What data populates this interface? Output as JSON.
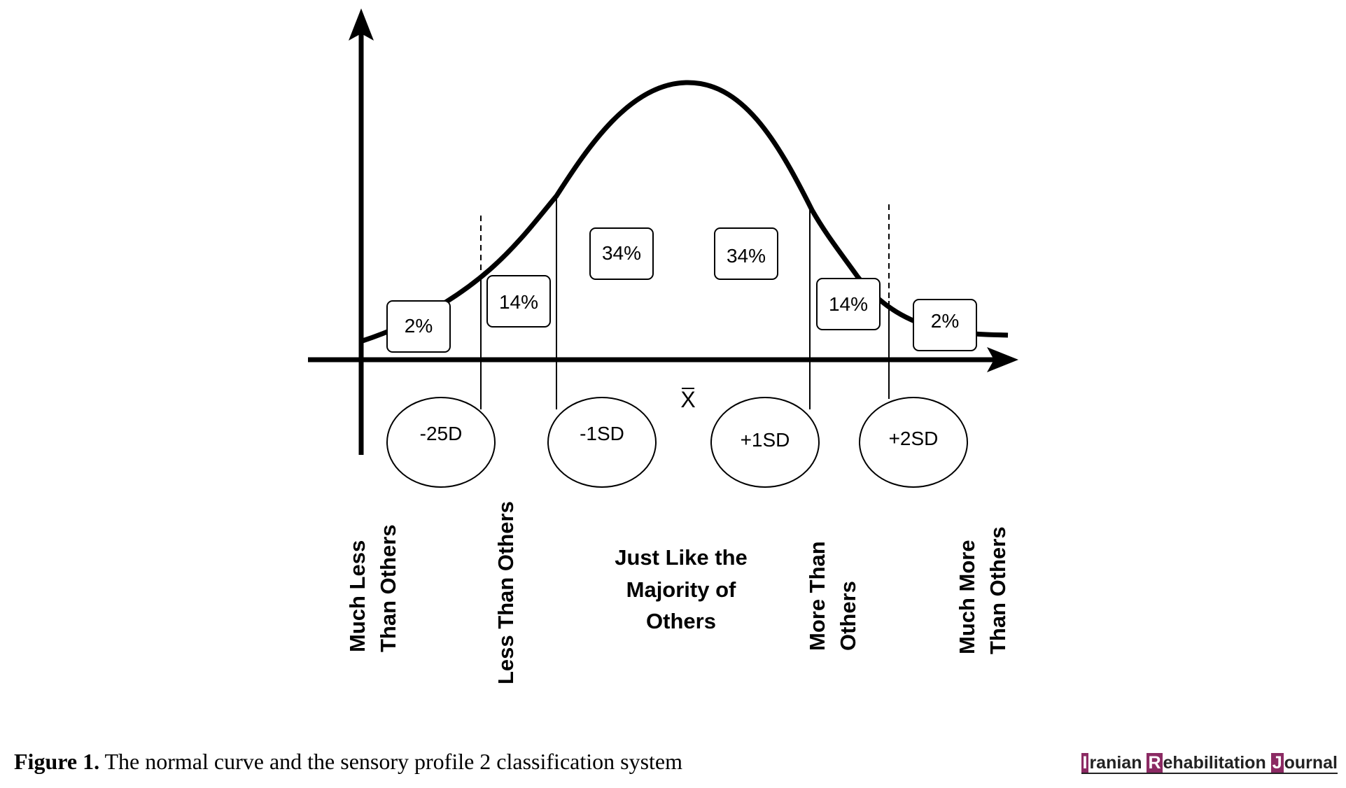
{
  "diagram": {
    "percent_boxes": [
      "2%",
      "14%",
      "34%",
      "34%",
      "14%",
      "2%"
    ],
    "sd_labels": [
      "-25D",
      "-1SD",
      "+1SD",
      "+2SD"
    ],
    "mean_label": "X",
    "categories": {
      "much_less": [
        "Much Less",
        "Than Others"
      ],
      "less": [
        "Less Than Others"
      ],
      "just_like": [
        "Just Like the",
        "Majority of",
        "Others"
      ],
      "more": [
        "More Than",
        "Others"
      ],
      "much_more": [
        "Much More",
        "Than Others"
      ]
    }
  },
  "caption": {
    "label": "Figure 1.",
    "text": " The normal curve and the sensory profile 2 classification system"
  },
  "journal": {
    "initials": [
      "I",
      "R",
      "J"
    ],
    "words": [
      "ranian ",
      "ehabilitation ",
      "ournal"
    ]
  }
}
